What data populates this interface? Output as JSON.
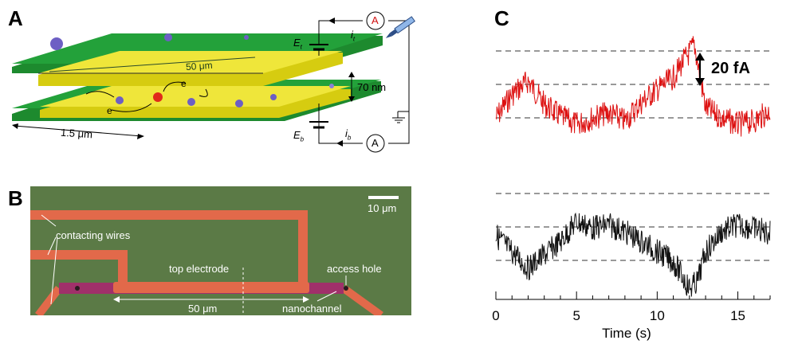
{
  "figure": {
    "panel_a": {
      "letter": "A",
      "distance_top": "50 μm",
      "gap": "70 nm",
      "width_bottom": "1.5 μm",
      "e1": "e",
      "e2": "e",
      "et": "E",
      "et_sub": "t",
      "it": "i",
      "it_sub": "t",
      "eb": "E",
      "eb_sub": "b",
      "ib": "i",
      "ib_sub": "b",
      "ammeter_top": "A",
      "ammeter_bottom": "A",
      "colors": {
        "plate_green": "#1d8a2e",
        "plate_yellow": "#e6de1c",
        "particle_purple": "#6d5fc4",
        "particle_red": "#e02a1a"
      }
    },
    "panel_b": {
      "letter": "B",
      "scale_bar": "10 μm",
      "contacting_wires": "contacting wires",
      "top_electrode": "top electrode",
      "access_hole": "access hole",
      "length": "50 μm",
      "nanochannel": "nanochannel",
      "colors": {
        "background": "#5b7a46",
        "wire": "#e2694a",
        "channel": "#a0306a"
      }
    },
    "panel_c": {
      "letter": "C",
      "scale": "20 fA",
      "x_label": "Time (s)",
      "x_ticks": [
        "0",
        "5",
        "10",
        "15"
      ]
    }
  },
  "chart_data": {
    "type": "line",
    "x_label": "Time (s)",
    "x_range": [
      0,
      17
    ],
    "x_ticks": [
      0,
      5,
      10,
      15
    ],
    "scale_bar": "20 fA",
    "series": [
      {
        "color": "#dd1111",
        "x": [
          0,
          1,
          2,
          3,
          4,
          5,
          6,
          7,
          8,
          9,
          10,
          11,
          11.5,
          12,
          12.3,
          12.6,
          13,
          14,
          15,
          16,
          17
        ],
        "y": [
          0,
          14,
          22,
          8,
          1,
          -4,
          0,
          3,
          -2,
          9,
          17,
          24,
          32,
          39,
          44,
          28,
          6,
          0,
          -4,
          -2,
          4
        ]
      },
      {
        "color": "#111111",
        "x": [
          0,
          1,
          2,
          3,
          4,
          5,
          6,
          7,
          8,
          9,
          10,
          11,
          11.5,
          12,
          12.5,
          13,
          14,
          15,
          16,
          17
        ],
        "y": [
          0,
          -10,
          -20,
          -12,
          -4,
          8,
          4,
          6,
          2,
          -4,
          -10,
          -16,
          -24,
          -32,
          -28,
          -10,
          2,
          6,
          4,
          1
        ]
      }
    ]
  }
}
